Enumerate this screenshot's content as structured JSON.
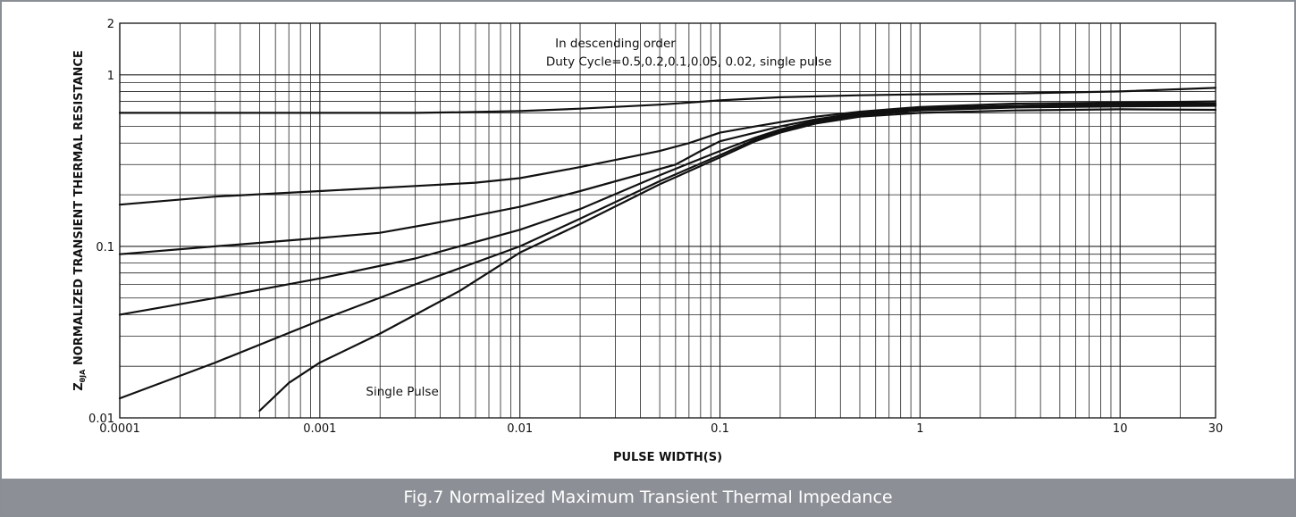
{
  "caption": "Fig.7 Normalized Maximum Transient Thermal Impedance",
  "colors": {
    "curve": "#111111",
    "grid": "#222222",
    "caption_bg": "#8c9096"
  },
  "chart_data": {
    "type": "line",
    "xscale": "log",
    "yscale": "log",
    "xlim": [
      0.0001,
      30
    ],
    "ylim": [
      0.01,
      2
    ],
    "grid": true,
    "xlabel": "PULSE WIDTH(S)",
    "ylabel_main": "Z",
    "ylabel_sub": "θJA",
    "ylabel_rest": " NORMALIZED TRANSIENT THERMAL RESISTANCE",
    "x_ticks": [
      {
        "value": 0.0001,
        "label": "0.0001"
      },
      {
        "value": 0.001,
        "label": "0.001"
      },
      {
        "value": 0.01,
        "label": "0.01"
      },
      {
        "value": 0.1,
        "label": "0.1"
      },
      {
        "value": 1,
        "label": "1"
      },
      {
        "value": 10,
        "label": "10"
      },
      {
        "value": 30,
        "label": "30"
      }
    ],
    "y_ticks": [
      {
        "value": 0.01,
        "label": "0.01"
      },
      {
        "value": 0.1,
        "label": "0.1"
      },
      {
        "value": 1,
        "label": "1"
      },
      {
        "value": 2,
        "label": "2"
      }
    ],
    "annotations": [
      {
        "text": "In descending order",
        "x": 0.015,
        "y": 1.45
      },
      {
        "text": "Duty Cycle=0.5,0.2,0.1,0.05, 0.02, single pulse",
        "x": 0.0135,
        "y": 1.13
      },
      {
        "text": "Single Pulse",
        "x": 0.0017,
        "y": 0.0135
      }
    ],
    "series": [
      {
        "x": [
          0.0001,
          0.001,
          0.003,
          0.005,
          0.01,
          0.02,
          0.05,
          0.1,
          0.2,
          0.5,
          1,
          3,
          10,
          30
        ],
        "y": [
          0.6,
          0.6,
          0.6,
          0.605,
          0.615,
          0.635,
          0.67,
          0.71,
          0.74,
          0.76,
          0.77,
          0.78,
          0.8,
          0.84
        ]
      },
      {
        "x": [
          0.0001,
          0.0003,
          0.001,
          0.003,
          0.006,
          0.01,
          0.02,
          0.05,
          0.07,
          0.1,
          0.15,
          0.2,
          0.3,
          0.5,
          1,
          3,
          10,
          30
        ],
        "y": [
          0.175,
          0.195,
          0.21,
          0.225,
          0.235,
          0.25,
          0.29,
          0.36,
          0.4,
          0.46,
          0.5,
          0.53,
          0.57,
          0.61,
          0.65,
          0.68,
          0.69,
          0.7
        ]
      },
      {
        "x": [
          0.0001,
          0.0003,
          0.001,
          0.002,
          0.005,
          0.01,
          0.02,
          0.06,
          0.08,
          0.1,
          0.15,
          0.2,
          0.3,
          0.5,
          1,
          3,
          10,
          30
        ],
        "y": [
          0.09,
          0.1,
          0.112,
          0.12,
          0.145,
          0.17,
          0.21,
          0.3,
          0.36,
          0.41,
          0.46,
          0.5,
          0.55,
          0.6,
          0.64,
          0.66,
          0.68,
          0.68
        ]
      },
      {
        "x": [
          0.0001,
          0.0003,
          0.001,
          0.003,
          0.01,
          0.02,
          0.05,
          0.1,
          0.15,
          0.2,
          0.3,
          0.5,
          1,
          3,
          10,
          30
        ],
        "y": [
          0.04,
          0.05,
          0.065,
          0.085,
          0.125,
          0.165,
          0.26,
          0.36,
          0.43,
          0.48,
          0.54,
          0.59,
          0.63,
          0.655,
          0.67,
          0.67
        ]
      },
      {
        "x": [
          0.0001,
          0.0003,
          0.001,
          0.003,
          0.01,
          0.02,
          0.05,
          0.1,
          0.15,
          0.2,
          0.3,
          0.5,
          1,
          3,
          10,
          30
        ],
        "y": [
          0.013,
          0.021,
          0.037,
          0.06,
          0.1,
          0.145,
          0.24,
          0.34,
          0.42,
          0.47,
          0.53,
          0.58,
          0.62,
          0.645,
          0.655,
          0.66
        ]
      },
      {
        "x": [
          0.0005,
          0.0007,
          0.001,
          0.002,
          0.005,
          0.01,
          0.02,
          0.05,
          0.1,
          0.15,
          0.2,
          0.3,
          0.5,
          1,
          3,
          10,
          30
        ],
        "y": [
          0.011,
          0.016,
          0.021,
          0.031,
          0.055,
          0.092,
          0.135,
          0.23,
          0.33,
          0.41,
          0.46,
          0.52,
          0.57,
          0.6,
          0.62,
          0.63,
          0.625
        ]
      }
    ]
  }
}
